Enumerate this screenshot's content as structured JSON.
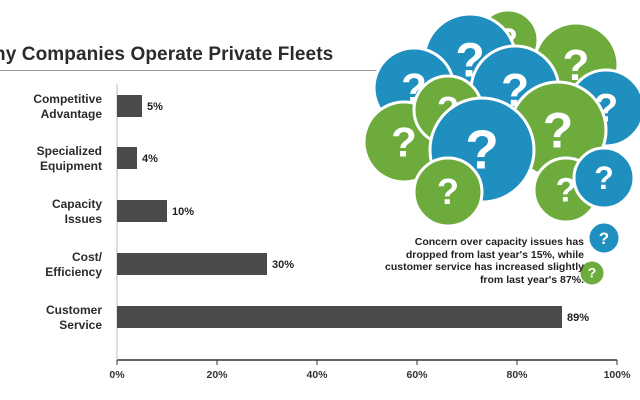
{
  "chart_data": {
    "type": "bar",
    "orientation": "horizontal",
    "title": "hy Companies Operate Private Fleets",
    "categories": [
      [
        "Competitive",
        "Advantage"
      ],
      [
        "Specialized",
        "Equipment"
      ],
      [
        "Capacity",
        "Issues"
      ],
      [
        "Cost/",
        "Efficiency"
      ],
      [
        "Customer",
        "Service"
      ]
    ],
    "values": [
      5,
      4,
      10,
      30,
      89
    ],
    "value_labels": [
      "5%",
      "4%",
      "10%",
      "30%",
      "89%"
    ],
    "xlim": [
      0,
      100
    ],
    "x_ticks": [
      0,
      20,
      40,
      60,
      80,
      100
    ],
    "x_tick_labels": [
      "0%",
      "20%",
      "40%",
      "60%",
      "80%",
      "100%"
    ],
    "grid": false,
    "bar_color": "#4a4a4a"
  },
  "annotation": {
    "lines": [
      "Concern over capacity issues has",
      "dropped from last year's 15%, while",
      "customer service has increased slightly",
      "from last year's 87%."
    ]
  },
  "decoration": {
    "glyph": "?",
    "colors": {
      "blue": "#1f8fbf",
      "green": "#6cab3c"
    }
  }
}
